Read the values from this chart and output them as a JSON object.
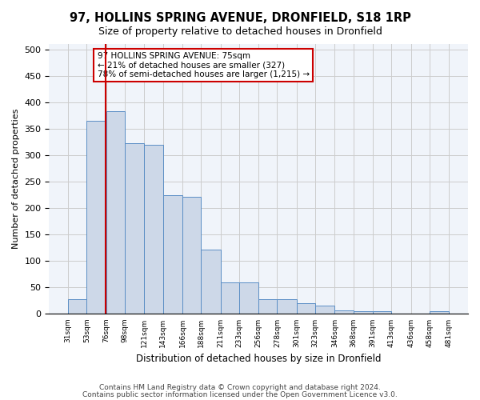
{
  "title": "97, HOLLINS SPRING AVENUE, DRONFIELD, S18 1RP",
  "subtitle": "Size of property relative to detached houses in Dronfield",
  "xlabel": "Distribution of detached houses by size in Dronfield",
  "ylabel": "Number of detached properties",
  "bins": [
    31,
    53,
    76,
    98,
    121,
    143,
    166,
    188,
    211,
    233,
    256,
    278,
    301,
    323,
    346,
    368,
    391,
    413,
    436,
    458,
    481
  ],
  "counts": [
    28,
    365,
    383,
    323,
    319,
    225,
    222,
    122,
    59,
    59,
    28,
    28,
    20,
    16,
    7,
    5,
    5,
    1,
    1,
    5,
    5
  ],
  "property_size": 75,
  "annotation_title": "97 HOLLINS SPRING AVENUE: 75sqm",
  "annotation_line1": "← 21% of detached houses are smaller (327)",
  "annotation_line2": "78% of semi-detached houses are larger (1,215) →",
  "bar_color": "#cdd8e8",
  "bar_edge_color": "#5b8ec5",
  "vline_color": "#cc0000",
  "annotation_box_color": "#cc0000",
  "background_color": "#f0f4fa",
  "grid_color": "#cccccc",
  "footer_line1": "Contains HM Land Registry data © Crown copyright and database right 2024.",
  "footer_line2": "Contains public sector information licensed under the Open Government Licence v3.0.",
  "ylim": [
    0,
    510
  ],
  "yticks": [
    0,
    50,
    100,
    150,
    200,
    250,
    300,
    350,
    400,
    450,
    500
  ]
}
